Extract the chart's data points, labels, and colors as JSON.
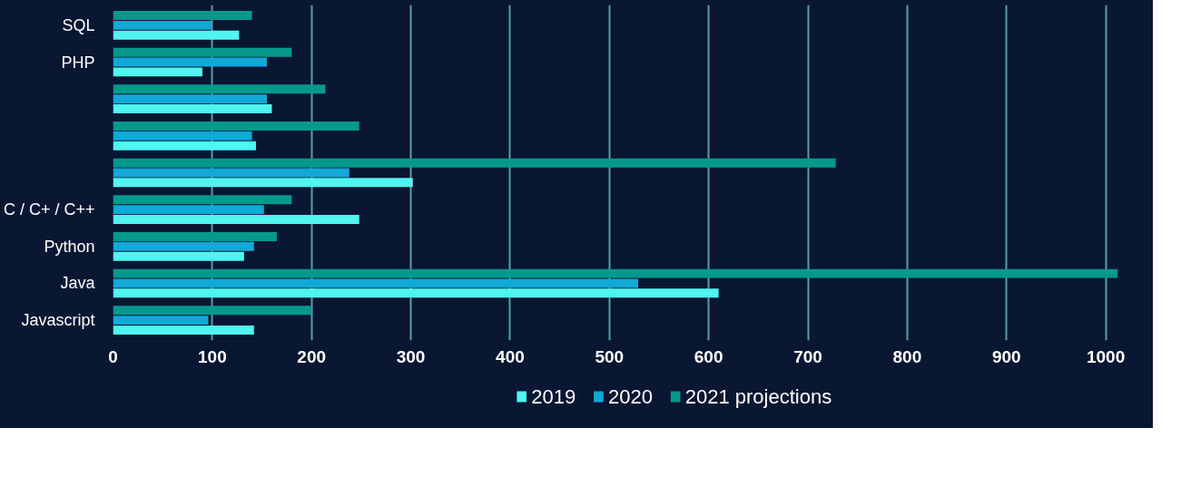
{
  "chart_data": {
    "type": "bar",
    "orientation": "horizontal",
    "categories": [
      "SQL",
      "PHP",
      null,
      null,
      null,
      "C / C+ / C++",
      "Python",
      "Java",
      "Javascript"
    ],
    "series": [
      {
        "name": "2019",
        "color": "#4ff5f0",
        "values": [
          127,
          90,
          160,
          144,
          302,
          248,
          132,
          610,
          142
        ]
      },
      {
        "name": "2020",
        "color": "#12a8d8",
        "values": [
          99,
          155,
          155,
          140,
          238,
          152,
          142,
          529,
          96
        ]
      },
      {
        "name": "2021 projections",
        "color": "#04998b",
        "values": [
          140,
          180,
          214,
          248,
          728,
          180,
          165,
          1012,
          200
        ]
      }
    ],
    "xlim": [
      0,
      1015
    ],
    "xticks": [
      0,
      100,
      200,
      300,
      400,
      500,
      600,
      700,
      800,
      900,
      1000
    ],
    "grid": "x",
    "legend": "bottom"
  }
}
